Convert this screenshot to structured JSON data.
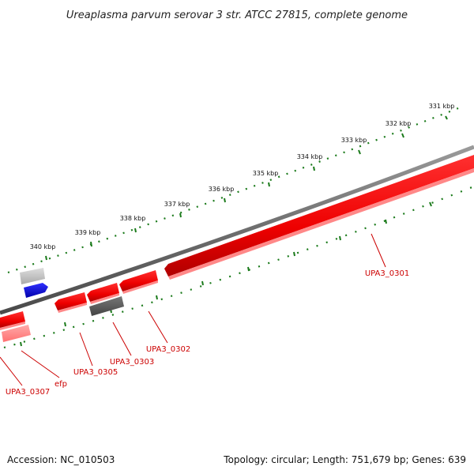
{
  "title": "Ureaplasma parvum serovar 3 str. ATCC 27815, complete genome",
  "footer": {
    "accession": "Accession: NC_010503",
    "topology": "Topology: circular; Length: 751,679 bp; Genes: 639"
  },
  "scale": {
    "tick_labels": [
      "331 kbp",
      "332 kbp",
      "333 kbp",
      "334 kbp",
      "335 kbp",
      "336 kbp",
      "337 kbp",
      "338 kbp",
      "339 kbp",
      "340 kbp"
    ]
  },
  "colors": {
    "forward_gene": "#ff0000",
    "reverse_gene": "#ff0000",
    "pseudo_gene": "#555555",
    "rna_gene": "#0000ff",
    "backbone": "#808080",
    "tick": "#1a7a1a",
    "label": "#cc0000"
  },
  "genes": [
    {
      "name": "UPA3_0301",
      "strand": "reverse"
    },
    {
      "name": "UPA3_0302",
      "strand": "reverse"
    },
    {
      "name": "UPA3_0303",
      "strand": "reverse"
    },
    {
      "name": "UPA3_0305",
      "strand": "reverse"
    },
    {
      "name": "efp",
      "strand": "reverse"
    },
    {
      "name": "UPA3_0307",
      "strand": "reverse"
    }
  ]
}
